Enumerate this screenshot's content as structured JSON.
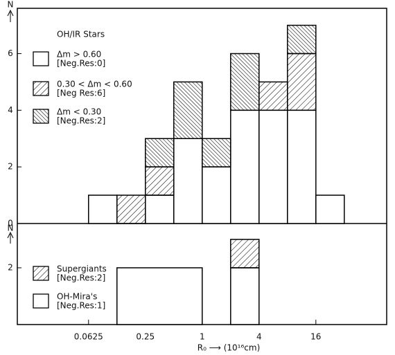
{
  "chart_data": [
    {
      "type": "histogram",
      "y_label": "N",
      "legend_title": "OH/IR Stars",
      "xscale": "log",
      "xlim": [
        0.011,
        90
      ],
      "ylim": [
        0,
        7.6
      ],
      "yticks": [
        0,
        2,
        4,
        6
      ],
      "bins": [
        0.0625,
        0.125,
        0.25,
        0.5,
        1,
        2,
        4,
        8,
        16,
        32
      ],
      "series": [
        {
          "name": "Δm > 0.60",
          "legend_note": "[Neg.Res:0]",
          "color": "#000000",
          "hatch": "none",
          "values": [
            1,
            0,
            1,
            3,
            2,
            4,
            4,
            4,
            1
          ]
        },
        {
          "name": "0.30 < Δm < 0.60",
          "legend_note": "[Neg Res:6]",
          "color": "#000000",
          "hatch": "forward",
          "values": [
            0,
            1,
            1,
            0,
            0,
            0,
            1,
            2,
            0
          ]
        },
        {
          "name": "Δm < 0.30",
          "legend_note": "[Neg.Res:2]",
          "color": "#000000",
          "hatch": "backward",
          "values": [
            0,
            0,
            1,
            2,
            1,
            2,
            0,
            1,
            0
          ]
        }
      ]
    },
    {
      "type": "histogram",
      "y_label": "N",
      "x_label": "R₀ ⟶ (10¹⁶cm)",
      "xscale": "log",
      "xlim": [
        0.011,
        90
      ],
      "ylim": [
        0,
        3.56
      ],
      "yticks": [
        2
      ],
      "xticks": [
        0.0625,
        0.25,
        1,
        4,
        16
      ],
      "bins": [
        0.125,
        1,
        2,
        4
      ],
      "series": [
        {
          "name": "OH-Mira's",
          "legend_note": "[Neg.Res:1]",
          "color": "#000000",
          "hatch": "none",
          "values": [
            2,
            0,
            2
          ]
        },
        {
          "name": "Supergiants",
          "legend_note": "[Neg.Res:2]",
          "color": "#000000",
          "hatch": "forward",
          "values": [
            0,
            0,
            1
          ]
        }
      ]
    }
  ]
}
